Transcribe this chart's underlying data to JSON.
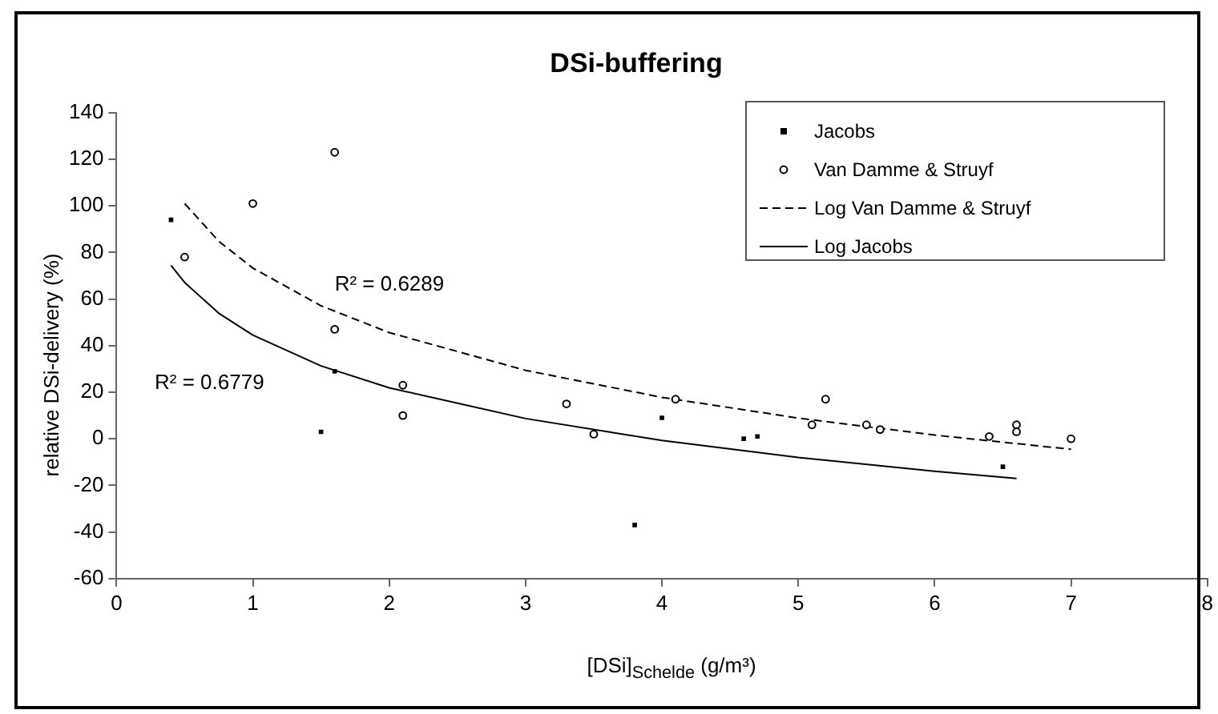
{
  "chart_data": {
    "type": "scatter",
    "title": "DSi-buffering",
    "xlabel": "[DSi]$_{Schelde}$ (g/m³)",
    "ylabel": "relative DSi-delivery (%)",
    "xlim": [
      0,
      8
    ],
    "xticks": [
      0,
      1,
      2,
      3,
      4,
      5,
      6,
      7,
      8
    ],
    "ylim": [
      -60,
      140
    ],
    "yticks": [
      -60,
      -40,
      -20,
      0,
      20,
      40,
      60,
      80,
      100,
      120,
      140
    ],
    "grid": false,
    "legend": "top right",
    "series": [
      {
        "name": "Jacobs",
        "type": "scatter",
        "marker": "square",
        "color": "#000000",
        "x": [
          0.4,
          1.5,
          1.6,
          3.8,
          4.0,
          4.6,
          4.7,
          6.5
        ],
        "values": [
          94,
          3,
          29,
          -37,
          9,
          0,
          1,
          -12
        ]
      },
      {
        "name": "Van Damme & Struyf",
        "type": "scatter",
        "marker": "circle",
        "color": "#000000",
        "x": [
          0.5,
          1.0,
          1.6,
          1.6,
          2.1,
          2.1,
          3.3,
          3.5,
          4.1,
          5.1,
          5.2,
          5.5,
          5.6,
          6.4,
          6.6,
          6.6,
          7.0
        ],
        "values": [
          78,
          101,
          123,
          47,
          23,
          10,
          15,
          2,
          17,
          6,
          17,
          6,
          4,
          1,
          6,
          3,
          0
        ]
      },
      {
        "name": "Log Van Damme & Struyf",
        "type": "line",
        "marker": "none",
        "line_style": "dashed",
        "color": "#000000",
        "x": [
          0.5,
          0.75,
          1,
          1.5,
          2,
          3,
          4,
          5,
          6,
          7
        ],
        "values": [
          101,
          84.8,
          73.3,
          57.1,
          45.6,
          29.4,
          17.8,
          8.9,
          1.6,
          -4.5
        ]
      },
      {
        "name": "Log Jacobs",
        "type": "line",
        "marker": "none",
        "line_style": "solid",
        "color": "#000000",
        "x": [
          0.4,
          0.5,
          0.75,
          1,
          1.5,
          2,
          3,
          4,
          5,
          6,
          6.6
        ],
        "values": [
          74.4,
          67.1,
          53.9,
          44.5,
          31.3,
          21.9,
          8.7,
          -0.7,
          -8.0,
          -13.9,
          -17.0
        ]
      }
    ],
    "annotations": [
      "R² = 0.6289",
      "R² = 0.6779"
    ]
  }
}
